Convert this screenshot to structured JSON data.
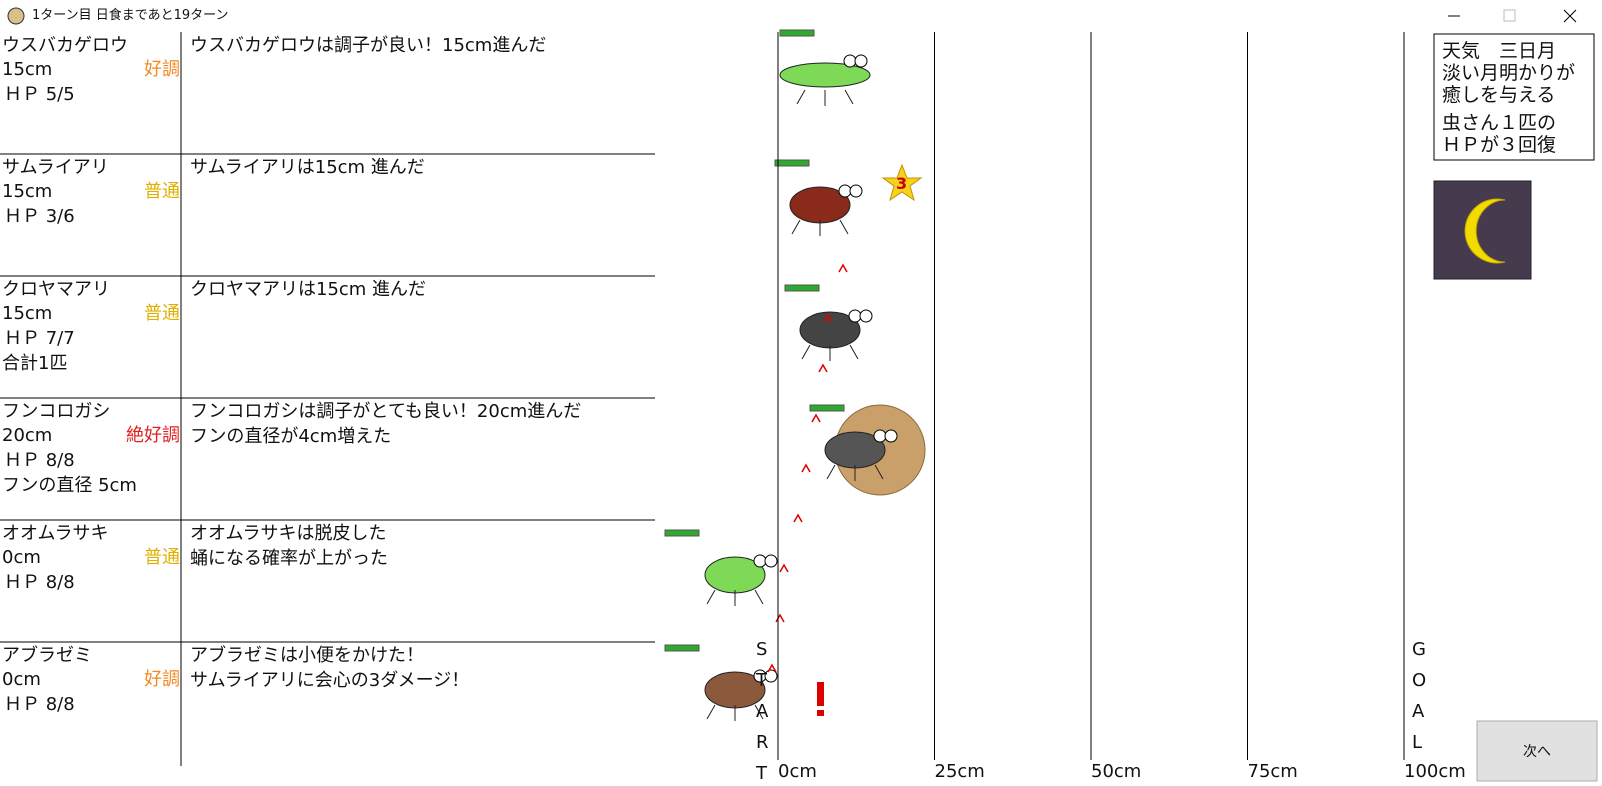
{
  "window_title": "1ターン目 日食まであと19ターン",
  "insects": [
    {
      "name": "ウスバカゲロウ",
      "distance": "15cm",
      "condition": "好調",
      "hp": "ＨＰ 5/5",
      "messages": [
        "ウスバカゲロウは調子が良い！15cm進んだ"
      ]
    },
    {
      "name": "サムライアリ",
      "distance": "15cm",
      "condition": "普通",
      "hp": "ＨＰ 3/6",
      "messages": [
        "サムライアリは15cm 進んだ"
      ]
    },
    {
      "name": "クロヤマアリ",
      "distance": "15cm",
      "condition": "普通",
      "hp": "ＨＰ 7/7",
      "extra": "合計1匹",
      "messages": [
        "クロヤマアリは15cm 進んだ"
      ]
    },
    {
      "name": "フンコロガシ",
      "distance": "20cm",
      "condition": "絶好調",
      "hp": "ＨＰ 8/8",
      "extra": "フンの直径 5cm",
      "messages": [
        "フンコロガシは調子がとても良い！20cm進んだ",
        "フンの直径が4cm増えた"
      ]
    },
    {
      "name": "オオムラサキ",
      "distance": "0cm",
      "condition": "普通",
      "hp": "ＨＰ 8/8",
      "messages": [
        "オオムラサキは脱皮した",
        "蛹になる確率が上がった"
      ]
    },
    {
      "name": "アブラゼミ",
      "distance": "0cm",
      "condition": "好調",
      "hp": "ＨＰ 8/8",
      "messages": [
        "アブラゼミは小便をかけた！",
        "サムライアリに会心の3ダメージ！"
      ]
    }
  ],
  "track_ticks": [
    "0cm",
    "25cm",
    "50cm",
    "75cm",
    "100cm"
  ],
  "start_letters": [
    "S",
    "T",
    "A",
    "R",
    "T"
  ],
  "goal_letters": [
    "G",
    "O",
    "A",
    "L"
  ],
  "weather": {
    "lines": [
      "天気　三日月",
      "淡い月明かりが",
      "癒しを与える",
      "虫さん１匹の",
      "ＨＰが３回復"
    ]
  },
  "damage_badge": "3",
  "next_button": "次へ"
}
